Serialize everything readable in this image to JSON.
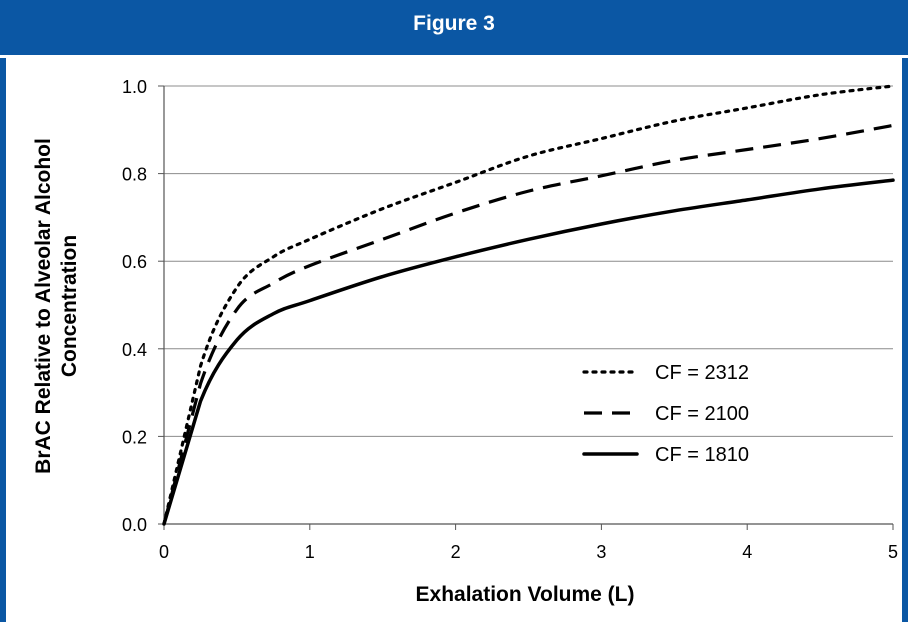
{
  "figure_title": "Figure 3",
  "colors": {
    "header_bg": "#0b57a4",
    "header_text": "#ffffff",
    "line": "#000000",
    "grid": "#8c8c8c"
  },
  "chart_data": {
    "type": "line",
    "title": "",
    "xlabel": "Exhalation Volume (L)",
    "ylabel_lines": [
      "BrAC Relative to Alveolar Alcohol",
      "Concentration"
    ],
    "xlim": [
      0,
      5
    ],
    "ylim": [
      0,
      1.0
    ],
    "x_ticks": [
      "0",
      "1",
      "2",
      "3",
      "4",
      "5"
    ],
    "y_ticks": [
      "0.0",
      "0.2",
      "0.4",
      "0.6",
      "0.8",
      "1.0"
    ],
    "grid": "horizontal",
    "legend_position": "center-right",
    "series": [
      {
        "name": "CF = 2312",
        "style": "dotted",
        "x": [
          0,
          0.25,
          0.5,
          0.75,
          1,
          1.5,
          2,
          2.5,
          3,
          3.5,
          4,
          4.5,
          5
        ],
        "y": [
          0,
          0.36,
          0.54,
          0.61,
          0.65,
          0.72,
          0.78,
          0.84,
          0.88,
          0.92,
          0.95,
          0.98,
          1.0
        ]
      },
      {
        "name": "CF = 2100",
        "style": "dashed",
        "x": [
          0,
          0.25,
          0.5,
          0.75,
          1,
          1.5,
          2,
          2.5,
          3,
          3.5,
          4,
          4.5,
          5
        ],
        "y": [
          0,
          0.32,
          0.49,
          0.55,
          0.59,
          0.65,
          0.71,
          0.76,
          0.795,
          0.83,
          0.855,
          0.88,
          0.91
        ]
      },
      {
        "name": "CF = 1810",
        "style": "solid",
        "x": [
          0,
          0.25,
          0.5,
          0.75,
          1,
          1.5,
          2,
          2.5,
          3,
          3.5,
          4,
          4.5,
          5
        ],
        "y": [
          0,
          0.28,
          0.42,
          0.48,
          0.51,
          0.565,
          0.61,
          0.65,
          0.685,
          0.715,
          0.74,
          0.765,
          0.785
        ]
      }
    ]
  }
}
